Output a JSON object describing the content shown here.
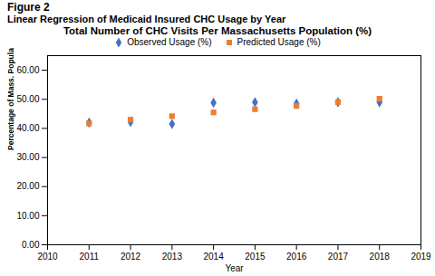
{
  "chart_data": {
    "type": "scatter",
    "title": "Total Number of CHC Visits Per Massachusetts Population (%)",
    "subtitle": "Linear Regression of Medicaid Insured CHC Usage by Year",
    "annotations": [
      "Figure 2"
    ],
    "xlabel": "Year",
    "ylabel": "Percentage of Mass. Population Utilizing CHC",
    "x": [
      2011,
      2012,
      2013,
      2014,
      2015,
      2016,
      2017,
      2018
    ],
    "series": [
      {
        "name": "Observed Usage (%)",
        "color": "#4472C4",
        "marker": "diamond",
        "values": [
          42.0,
          42.2,
          41.5,
          48.8,
          49.0,
          48.5,
          49.0,
          49.0
        ]
      },
      {
        "name": "Predicted Usage (%)",
        "color": "#ED7D31",
        "marker": "square",
        "values": [
          41.7,
          43.0,
          44.2,
          45.5,
          46.6,
          47.7,
          49.0,
          50.2
        ]
      }
    ],
    "xlim": [
      2010,
      2019
    ],
    "xticks": [
      2010,
      2011,
      2012,
      2013,
      2014,
      2015,
      2016,
      2017,
      2018,
      2019
    ],
    "ylim": [
      0,
      65
    ],
    "yticks": [
      {
        "value": 0,
        "label": "0.00"
      },
      {
        "value": 10,
        "label": "10.00"
      },
      {
        "value": 20,
        "label": "20.00"
      },
      {
        "value": 30,
        "label": "30.00"
      },
      {
        "value": 40,
        "label": "40.00"
      },
      {
        "value": 50,
        "label": "50.00"
      },
      {
        "value": 60,
        "label": "60.00"
      }
    ],
    "grid": false
  }
}
